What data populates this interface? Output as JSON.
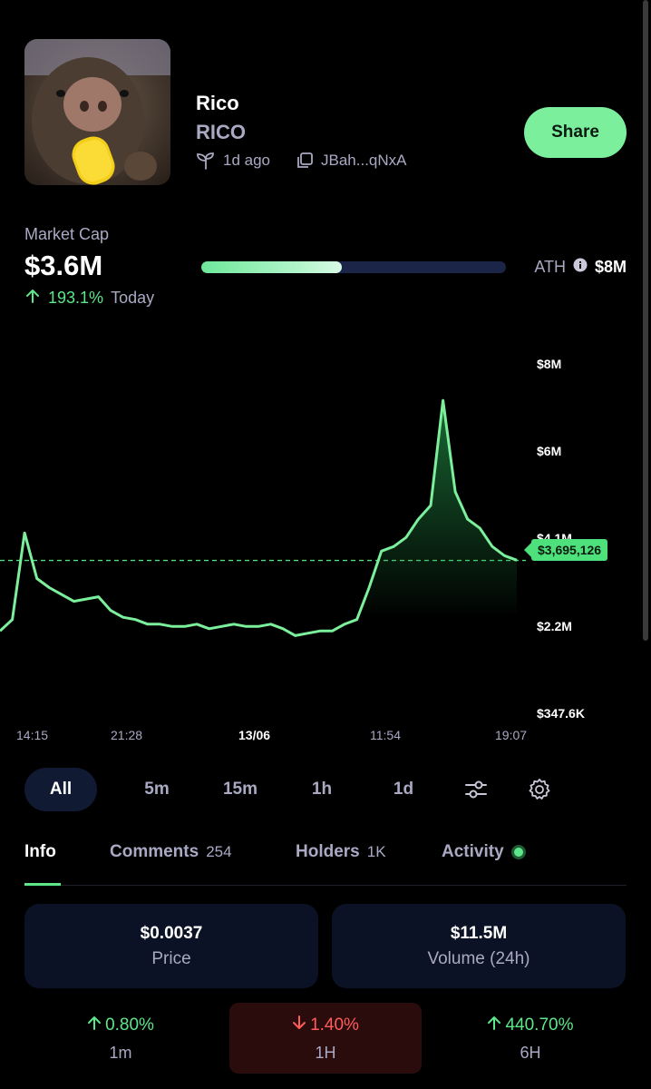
{
  "token": {
    "name": "Rico",
    "symbol": "RICO",
    "age": "1d ago",
    "address": "JBah...qNxA",
    "share_label": "Share"
  },
  "market_cap": {
    "label": "Market Cap",
    "value": "$3.6M",
    "change_pct": "193.1%",
    "change_period": "Today",
    "ath_label": "ATH",
    "ath_value": "$8M",
    "ath_progress": 0.46
  },
  "chart": {
    "current_price_label": "$3,695,126",
    "y_ticks": [
      "$8M",
      "$6M",
      "$4.1M",
      "$2.2M",
      "$347.6K"
    ],
    "x_ticks": [
      "14:15",
      "21:28",
      "13/06",
      "11:54",
      "19:07"
    ]
  },
  "chart_data": {
    "type": "line",
    "title": "",
    "xlabel": "",
    "ylabel": "",
    "ylim": [
      347600,
      8000000
    ],
    "y_ticks": [
      8000000,
      6000000,
      4100000,
      2200000,
      347600
    ],
    "current_value": 3695126,
    "values": [
      2150000,
      2400000,
      4300000,
      3300000,
      3100000,
      2950000,
      2800000,
      2850000,
      2900000,
      2600000,
      2450000,
      2400000,
      2300000,
      2300000,
      2250000,
      2250000,
      2300000,
      2200000,
      2250000,
      2300000,
      2250000,
      2250000,
      2300000,
      2200000,
      2050000,
      2100000,
      2150000,
      2150000,
      2300000,
      2400000,
      3100000,
      3900000,
      4000000,
      4200000,
      4600000,
      4900000,
      7200000,
      5200000,
      4600000,
      4400000,
      4000000,
      3800000,
      3700000
    ],
    "grid": false,
    "colors": {
      "line": "#7cef9c",
      "fill": "#1e7a3c",
      "reference": "#4ee07a"
    }
  },
  "timeframes": {
    "items": [
      "All",
      "5m",
      "15m",
      "1h",
      "1d"
    ],
    "active": "All"
  },
  "tabs": {
    "info": "Info",
    "comments": "Comments",
    "comments_count": "254",
    "holders": "Holders",
    "holders_count": "1K",
    "activity": "Activity"
  },
  "stats": {
    "price_value": "$0.0037",
    "price_label": "Price",
    "volume_value": "$11.5M",
    "volume_label": "Volume (24h)"
  },
  "changes": [
    {
      "value": "0.80%",
      "label": "1m",
      "direction": "up"
    },
    {
      "value": "1.40%",
      "label": "1H",
      "direction": "down"
    },
    {
      "value": "440.70%",
      "label": "6H",
      "direction": "up"
    }
  ]
}
